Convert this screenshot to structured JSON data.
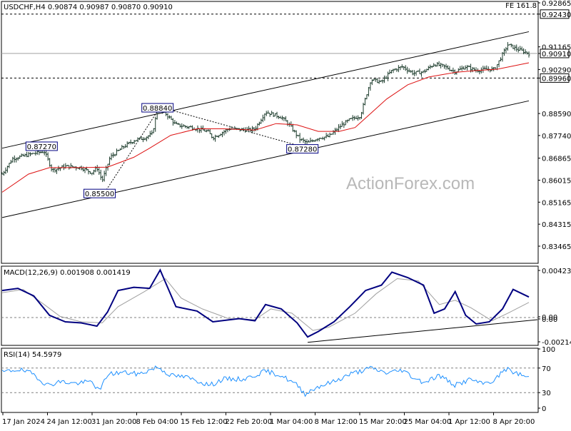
{
  "chart_data": {
    "type": "candlestick",
    "symbol_header": "USDCHF,H4  0.90874 0.90987 0.90870 0.90910",
    "fe_label": "FE 161.8",
    "watermark": "ActionForex.com",
    "price_axis_ticks": [
      "0.92865",
      "0.92430",
      "0.91165",
      "0.90910",
      "0.90290",
      "0.89960",
      "0.88590",
      "0.87740",
      "0.86865",
      "0.86015",
      "0.85165",
      "0.84315",
      "0.83465"
    ],
    "price_axis_values": [
      0.92865,
      0.9243,
      0.91165,
      0.9091,
      0.9029,
      0.8996,
      0.8859,
      0.8774,
      0.86865,
      0.86015,
      0.85165,
      0.84315,
      0.83465
    ],
    "boxed_labels": [
      "0.92430",
      "0.90910",
      "0.89960"
    ],
    "price_range": [
      0.83465,
      0.92865
    ],
    "horizontal_levels": [
      {
        "value": 0.9243,
        "style": "dashed"
      },
      {
        "value": 0.8996,
        "style": "dashed"
      },
      {
        "value": 0.9091,
        "style": "solid-gray"
      }
    ],
    "annotations": [
      {
        "text": "0.87270",
        "value": 0.8727
      },
      {
        "text": "0.85500",
        "value": 0.855
      },
      {
        "text": "0.88840",
        "value": 0.8884
      },
      {
        "text": "0.87280",
        "value": 0.8728
      }
    ],
    "x_tick_labels": [
      "17 Jan 2024",
      "24 Jan 12:00",
      "31 Jan 20:00",
      "8 Feb 04:00",
      "15 Feb 12:00",
      "22 Feb 20:00",
      "1 Mar 04:00",
      "8 Mar 12:00",
      "15 Mar 20:00",
      "25 Mar 04:00",
      "1 Apr 12:00",
      "8 Apr 20:00"
    ],
    "close_series": [
      {
        "t": 0,
        "v": 0.8625
      },
      {
        "t": 0.02,
        "v": 0.8685
      },
      {
        "t": 0.04,
        "v": 0.8695
      },
      {
        "t": 0.06,
        "v": 0.8705
      },
      {
        "t": 0.08,
        "v": 0.8712
      },
      {
        "t": 0.085,
        "v": 0.869
      },
      {
        "t": 0.095,
        "v": 0.864
      },
      {
        "t": 0.12,
        "v": 0.8655
      },
      {
        "t": 0.15,
        "v": 0.865
      },
      {
        "t": 0.17,
        "v": 0.863
      },
      {
        "t": 0.18,
        "v": 0.865
      },
      {
        "t": 0.19,
        "v": 0.86
      },
      {
        "t": 0.205,
        "v": 0.869
      },
      {
        "t": 0.23,
        "v": 0.873
      },
      {
        "t": 0.25,
        "v": 0.8755
      },
      {
        "t": 0.27,
        "v": 0.8765
      },
      {
        "t": 0.285,
        "v": 0.878
      },
      {
        "t": 0.295,
        "v": 0.8875
      },
      {
        "t": 0.31,
        "v": 0.886
      },
      {
        "t": 0.33,
        "v": 0.8815
      },
      {
        "t": 0.36,
        "v": 0.8805
      },
      {
        "t": 0.39,
        "v": 0.879
      },
      {
        "t": 0.4,
        "v": 0.8765
      },
      {
        "t": 0.43,
        "v": 0.88
      },
      {
        "t": 0.47,
        "v": 0.8795
      },
      {
        "t": 0.48,
        "v": 0.88
      },
      {
        "t": 0.5,
        "v": 0.8865
      },
      {
        "t": 0.53,
        "v": 0.8845
      },
      {
        "t": 0.545,
        "v": 0.8815
      },
      {
        "t": 0.565,
        "v": 0.876
      },
      {
        "t": 0.58,
        "v": 0.8745
      },
      {
        "t": 0.6,
        "v": 0.8765
      },
      {
        "t": 0.62,
        "v": 0.877
      },
      {
        "t": 0.645,
        "v": 0.8815
      },
      {
        "t": 0.66,
        "v": 0.8835
      },
      {
        "t": 0.68,
        "v": 0.885
      },
      {
        "t": 0.7,
        "v": 0.899
      },
      {
        "t": 0.72,
        "v": 0.898
      },
      {
        "t": 0.74,
        "v": 0.9025
      },
      {
        "t": 0.76,
        "v": 0.904
      },
      {
        "t": 0.78,
        "v": 0.9015
      },
      {
        "t": 0.8,
        "v": 0.902
      },
      {
        "t": 0.82,
        "v": 0.905
      },
      {
        "t": 0.84,
        "v": 0.904
      },
      {
        "t": 0.86,
        "v": 0.902
      },
      {
        "t": 0.88,
        "v": 0.904
      },
      {
        "t": 0.9,
        "v": 0.9025
      },
      {
        "t": 0.92,
        "v": 0.903
      },
      {
        "t": 0.935,
        "v": 0.903
      },
      {
        "t": 0.96,
        "v": 0.9125
      },
      {
        "t": 0.975,
        "v": 0.911
      },
      {
        "t": 1.0,
        "v": 0.9091
      }
    ],
    "ma_series": [
      {
        "t": 0,
        "v": 0.8555
      },
      {
        "t": 0.05,
        "v": 0.8625
      },
      {
        "t": 0.09,
        "v": 0.865
      },
      {
        "t": 0.15,
        "v": 0.865
      },
      {
        "t": 0.2,
        "v": 0.8652
      },
      {
        "t": 0.25,
        "v": 0.869
      },
      {
        "t": 0.28,
        "v": 0.8725
      },
      {
        "t": 0.32,
        "v": 0.8775
      },
      {
        "t": 0.37,
        "v": 0.88
      },
      {
        "t": 0.42,
        "v": 0.88
      },
      {
        "t": 0.48,
        "v": 0.8795
      },
      {
        "t": 0.52,
        "v": 0.882
      },
      {
        "t": 0.56,
        "v": 0.8815
      },
      {
        "t": 0.6,
        "v": 0.879
      },
      {
        "t": 0.64,
        "v": 0.879
      },
      {
        "t": 0.67,
        "v": 0.8805
      },
      {
        "t": 0.7,
        "v": 0.886
      },
      {
        "t": 0.73,
        "v": 0.8915
      },
      {
        "t": 0.77,
        "v": 0.897
      },
      {
        "t": 0.81,
        "v": 0.9
      },
      {
        "t": 0.86,
        "v": 0.9018
      },
      {
        "t": 0.9,
        "v": 0.9025
      },
      {
        "t": 0.94,
        "v": 0.903
      },
      {
        "t": 1.0,
        "v": 0.9055
      }
    ],
    "channel_lines": [
      {
        "from": {
          "t": 0,
          "v": 0.8457
        },
        "to": {
          "t": 1.0,
          "v": 0.8908
        }
      },
      {
        "from": {
          "t": 0,
          "v": 0.8725
        },
        "to": {
          "t": 1.0,
          "v": 0.9175
        }
      }
    ],
    "dotted_swing_lines": [
      [
        {
          "t": 0.195,
          "v": 0.8555
        },
        {
          "t": 0.3,
          "v": 0.8884
        }
      ],
      [
        {
          "t": 0.3,
          "v": 0.8884
        },
        {
          "t": 0.575,
          "v": 0.8728
        }
      ]
    ],
    "macd": {
      "label": "MACD(12,26,9) 0.001908 0.001419",
      "axis_ticks": [
        "0.004237",
        "0.00",
        "0.00",
        "-0.002142"
      ],
      "axis_values": [
        0.004237,
        0.0,
        0.0,
        -0.002142
      ],
      "range": [
        -0.00245,
        0.00456
      ],
      "macd_series": [
        {
          "t": 0,
          "v": 0.0025
        },
        {
          "t": 0.03,
          "v": 0.0027
        },
        {
          "t": 0.06,
          "v": 0.002
        },
        {
          "t": 0.09,
          "v": 0.0002
        },
        {
          "t": 0.12,
          "v": -0.0004
        },
        {
          "t": 0.15,
          "v": -0.0005
        },
        {
          "t": 0.18,
          "v": -0.0008
        },
        {
          "t": 0.2,
          "v": 0.0005
        },
        {
          "t": 0.22,
          "v": 0.0025
        },
        {
          "t": 0.25,
          "v": 0.0028
        },
        {
          "t": 0.28,
          "v": 0.0027
        },
        {
          "t": 0.3,
          "v": 0.0044
        },
        {
          "t": 0.33,
          "v": 0.001
        },
        {
          "t": 0.37,
          "v": 0.0006
        },
        {
          "t": 0.4,
          "v": -0.0004
        },
        {
          "t": 0.45,
          "v": -0.0001
        },
        {
          "t": 0.48,
          "v": -0.0003
        },
        {
          "t": 0.5,
          "v": 0.0012
        },
        {
          "t": 0.53,
          "v": 0.0008
        },
        {
          "t": 0.56,
          "v": -0.0005
        },
        {
          "t": 0.58,
          "v": -0.0018
        },
        {
          "t": 0.6,
          "v": -0.0013
        },
        {
          "t": 0.63,
          "v": -0.0004
        },
        {
          "t": 0.66,
          "v": 0.001
        },
        {
          "t": 0.69,
          "v": 0.0025
        },
        {
          "t": 0.72,
          "v": 0.003
        },
        {
          "t": 0.74,
          "v": 0.0042
        },
        {
          "t": 0.77,
          "v": 0.0037
        },
        {
          "t": 0.8,
          "v": 0.003
        },
        {
          "t": 0.82,
          "v": 0.0004
        },
        {
          "t": 0.84,
          "v": 0.0008
        },
        {
          "t": 0.86,
          "v": 0.0024
        },
        {
          "t": 0.88,
          "v": 0.0002
        },
        {
          "t": 0.9,
          "v": -0.0006
        },
        {
          "t": 0.925,
          "v": -0.0004
        },
        {
          "t": 0.95,
          "v": 0.0008
        },
        {
          "t": 0.97,
          "v": 0.0026
        },
        {
          "t": 1.0,
          "v": 0.0019
        }
      ],
      "signal_series": [
        {
          "t": 0,
          "v": 0.0023
        },
        {
          "t": 0.04,
          "v": 0.0026
        },
        {
          "t": 0.08,
          "v": 0.0012
        },
        {
          "t": 0.11,
          "v": 0.0001
        },
        {
          "t": 0.15,
          "v": -0.0004
        },
        {
          "t": 0.19,
          "v": -0.0005
        },
        {
          "t": 0.22,
          "v": 0.001
        },
        {
          "t": 0.27,
          "v": 0.0024
        },
        {
          "t": 0.31,
          "v": 0.0036
        },
        {
          "t": 0.34,
          "v": 0.0018
        },
        {
          "t": 0.38,
          "v": 0.0008
        },
        {
          "t": 0.43,
          "v": -0.0001
        },
        {
          "t": 0.48,
          "v": -0.0002
        },
        {
          "t": 0.51,
          "v": 0.0008
        },
        {
          "t": 0.55,
          "v": 0.0004
        },
        {
          "t": 0.59,
          "v": -0.0012
        },
        {
          "t": 0.62,
          "v": -0.0009
        },
        {
          "t": 0.67,
          "v": 0.0004
        },
        {
          "t": 0.71,
          "v": 0.0022
        },
        {
          "t": 0.75,
          "v": 0.0036
        },
        {
          "t": 0.79,
          "v": 0.0034
        },
        {
          "t": 0.83,
          "v": 0.0012
        },
        {
          "t": 0.86,
          "v": 0.0016
        },
        {
          "t": 0.89,
          "v": 0.0009
        },
        {
          "t": 0.93,
          "v": -0.0003
        },
        {
          "t": 0.96,
          "v": 0.0004
        },
        {
          "t": 1.0,
          "v": 0.0014
        }
      ],
      "trend_line": [
        {
          "t": 0.58,
          "v": -0.0023
        },
        {
          "t": 1.0,
          "v": -0.0002
        }
      ]
    },
    "rsi": {
      "label": "RSI(14) 54.5979",
      "axis_ticks": [
        "100",
        "70",
        "30",
        "0"
      ],
      "axis_values": [
        100,
        70,
        30,
        0
      ],
      "range": [
        0,
        100
      ],
      "levels": [
        70,
        30
      ],
      "series": [
        {
          "t": 0,
          "v": 63
        },
        {
          "t": 0.03,
          "v": 68
        },
        {
          "t": 0.06,
          "v": 60
        },
        {
          "t": 0.085,
          "v": 42
        },
        {
          "t": 0.11,
          "v": 48
        },
        {
          "t": 0.14,
          "v": 45
        },
        {
          "t": 0.17,
          "v": 48
        },
        {
          "t": 0.185,
          "v": 32
        },
        {
          "t": 0.2,
          "v": 60
        },
        {
          "t": 0.23,
          "v": 63
        },
        {
          "t": 0.26,
          "v": 60
        },
        {
          "t": 0.295,
          "v": 72
        },
        {
          "t": 0.32,
          "v": 58
        },
        {
          "t": 0.35,
          "v": 55
        },
        {
          "t": 0.395,
          "v": 42
        },
        {
          "t": 0.42,
          "v": 52
        },
        {
          "t": 0.46,
          "v": 52
        },
        {
          "t": 0.5,
          "v": 65
        },
        {
          "t": 0.53,
          "v": 58
        },
        {
          "t": 0.56,
          "v": 42
        },
        {
          "t": 0.575,
          "v": 28
        },
        {
          "t": 0.6,
          "v": 40
        },
        {
          "t": 0.63,
          "v": 48
        },
        {
          "t": 0.66,
          "v": 60
        },
        {
          "t": 0.7,
          "v": 70
        },
        {
          "t": 0.73,
          "v": 62
        },
        {
          "t": 0.76,
          "v": 67
        },
        {
          "t": 0.78,
          "v": 55
        },
        {
          "t": 0.8,
          "v": 47
        },
        {
          "t": 0.83,
          "v": 58
        },
        {
          "t": 0.86,
          "v": 42
        },
        {
          "t": 0.89,
          "v": 52
        },
        {
          "t": 0.91,
          "v": 44
        },
        {
          "t": 0.935,
          "v": 50
        },
        {
          "t": 0.955,
          "v": 69
        },
        {
          "t": 0.975,
          "v": 62
        },
        {
          "t": 1.0,
          "v": 54.6
        }
      ]
    },
    "colors": {
      "price_bar": "#1a3a2a",
      "ma": "#dd1111",
      "macd_line": "#000080",
      "signal_line": "#a0a0a0",
      "rsi_line": "#1e90ff",
      "label_border": "#000080",
      "grid_dash": "#000000",
      "price_line": "#a0a0a0"
    }
  }
}
